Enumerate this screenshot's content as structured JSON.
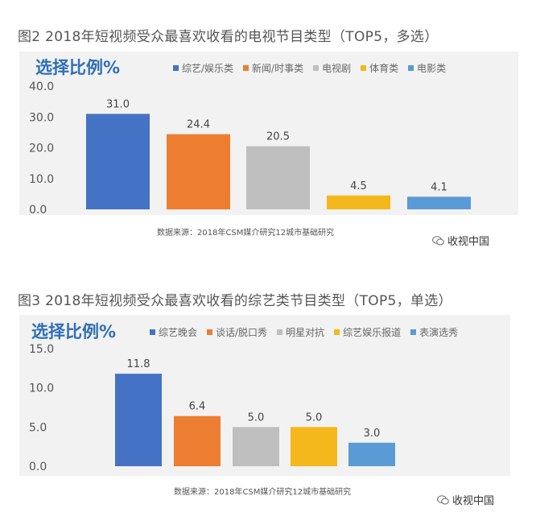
{
  "watermark": "收视中国",
  "chart_data": [
    {
      "type": "bar",
      "title": "图2  2018年短视频受众最喜欢收看的电视节目类型（TOP5，多选）",
      "ylabel": "选择比例%",
      "categories": [
        "综艺/娱乐类",
        "新闻/时事类",
        "电视剧",
        "体育类",
        "电影类"
      ],
      "values": [
        31.0,
        24.4,
        20.5,
        4.5,
        4.1
      ],
      "value_labels": [
        "31.0",
        "24.4",
        "20.5",
        "4.5",
        "4.1"
      ],
      "colors": [
        "#4472c4",
        "#ed7d31",
        "#bfbfbf",
        "#f5b81c",
        "#5b9bd5"
      ],
      "ylim": [
        0,
        40
      ],
      "yticks": [
        "40.0",
        "30.0",
        "20.0",
        "10.0",
        "0.0"
      ],
      "ytick_values": [
        40,
        30,
        20,
        10,
        0
      ],
      "legend_position": "top",
      "grid": false,
      "source": "数据来源：2018年CSM媒介研究12城市基础研究"
    },
    {
      "type": "bar",
      "title": "图3  2018年短视频受众最喜欢收看的综艺类节目类型（TOP5，单选）",
      "ylabel": "选择比例%",
      "categories": [
        "综艺晚会",
        "谈话/脱口秀",
        "明星对抗",
        "综艺娱乐报道",
        "表演选秀"
      ],
      "values": [
        11.8,
        6.4,
        5.0,
        5.0,
        3.0
      ],
      "value_labels": [
        "11.8",
        "6.4",
        "5.0",
        "5.0",
        "3.0"
      ],
      "colors": [
        "#4472c4",
        "#ed7d31",
        "#bfbfbf",
        "#f5b81c",
        "#5b9bd5"
      ],
      "ylim": [
        0,
        15
      ],
      "yticks": [
        "15.0",
        "10.0",
        "5.0",
        "0.0"
      ],
      "ytick_values": [
        15,
        10,
        5,
        0
      ],
      "legend_position": "top",
      "grid": false,
      "source": "数据来源：2018年CSM媒介研究12城市基础研究"
    }
  ]
}
